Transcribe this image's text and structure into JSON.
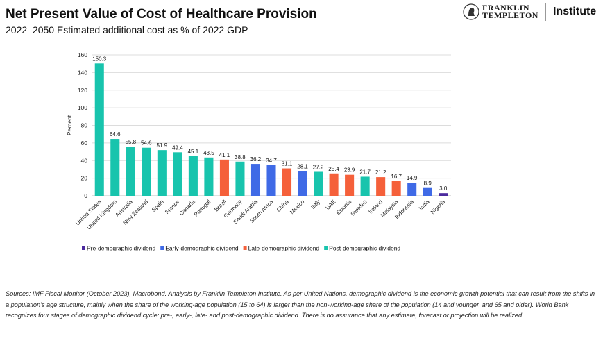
{
  "header": {
    "title": "Net Present Value of Cost of Healthcare Provision",
    "subtitle": "2022–2050 Estimated additional cost as % of 2022 GDP"
  },
  "logo": {
    "brand_line1": "FRANKLIN",
    "brand_line2": "TEMPLETON",
    "institute": "Institute"
  },
  "footer": {
    "sources": "Sources: IMF Fiscal Monitor (October 2023), Macrobond. Analysis by Franklin Templeton Institute. As per United Nations, demographic dividend is the economic growth potential that can result from the shifts in a population's age structure, mainly when the share of the working-age population (15 to 64) is larger than the non-working-age share of the population (14 and younger, and 65 and older). World Bank recognizes four stages of demographic dividend cycle: pre-, early-, late- and post-demographic dividend. There is no assurance that any estimate, forecast or projection will be realized.."
  },
  "chart_data": {
    "type": "bar",
    "ylabel": "Percent",
    "ylim": [
      0,
      160
    ],
    "yticks": [
      0,
      20,
      40,
      60,
      80,
      100,
      120,
      140,
      160
    ],
    "grid": true,
    "legend_position": "bottom",
    "categories": [
      "United States",
      "United Kingdom",
      "Australia",
      "New Zealand",
      "Spain",
      "France",
      "Canada",
      "Portugal",
      "Brazil",
      "Germany",
      "Saudi Arabia",
      "South Africa",
      "China",
      "Mexico",
      "Italy",
      "UAE",
      "Estonia",
      "Sweden",
      "Ireland",
      "Malaysia",
      "Indonesia",
      "India",
      "Nigeria"
    ],
    "values": [
      150.3,
      64.6,
      55.8,
      54.6,
      51.9,
      49.4,
      45.1,
      43.5,
      41.1,
      38.8,
      36.2,
      34.7,
      31.1,
      28.1,
      27.2,
      25.4,
      23.9,
      21.7,
      21.2,
      16.7,
      14.9,
      8.9,
      3.0
    ],
    "labels": [
      "150.3",
      "64.6",
      "55.8",
      "54.6",
      "51.9",
      "49.4",
      "45.1",
      "43.5",
      "41.1",
      "38.8",
      "36.2",
      "34.7",
      "31.1",
      "28.1",
      "27.2",
      "25.4",
      "23.9",
      "21.7",
      "21.2",
      "16.7",
      "14.9",
      "8.9",
      "3.0"
    ],
    "groups": [
      "post",
      "post",
      "post",
      "post",
      "post",
      "post",
      "post",
      "post",
      "late",
      "post",
      "early",
      "early",
      "late",
      "early",
      "post",
      "late",
      "late",
      "post",
      "late",
      "late",
      "early",
      "early",
      "pre"
    ],
    "legend": [
      {
        "key": "pre",
        "name": "Pre-demographic dividend",
        "color": "#4b2a9e"
      },
      {
        "key": "early",
        "name": "Early-demographic dividend",
        "color": "#3f6ae6"
      },
      {
        "key": "late",
        "name": "Late-demographic dividend",
        "color": "#f5603a"
      },
      {
        "key": "post",
        "name": "Post-demographic dividend",
        "color": "#18c4ad"
      }
    ]
  }
}
